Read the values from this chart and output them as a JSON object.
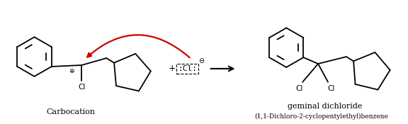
{
  "bg_color": "#ffffff",
  "figsize": [
    5.76,
    1.75
  ],
  "dpi": 100,
  "arrow_color": "#cc0000",
  "bond_color": "#000000",
  "text_color": "#000000",
  "label_carbocation": "Carbocation",
  "label_product": "geminal dichloride",
  "label_iupac": "(1,1-Dichloro-2-cyclopentylethyl)benzene",
  "benz_r": 0.055,
  "cp_r": 0.065,
  "lw": 1.3
}
